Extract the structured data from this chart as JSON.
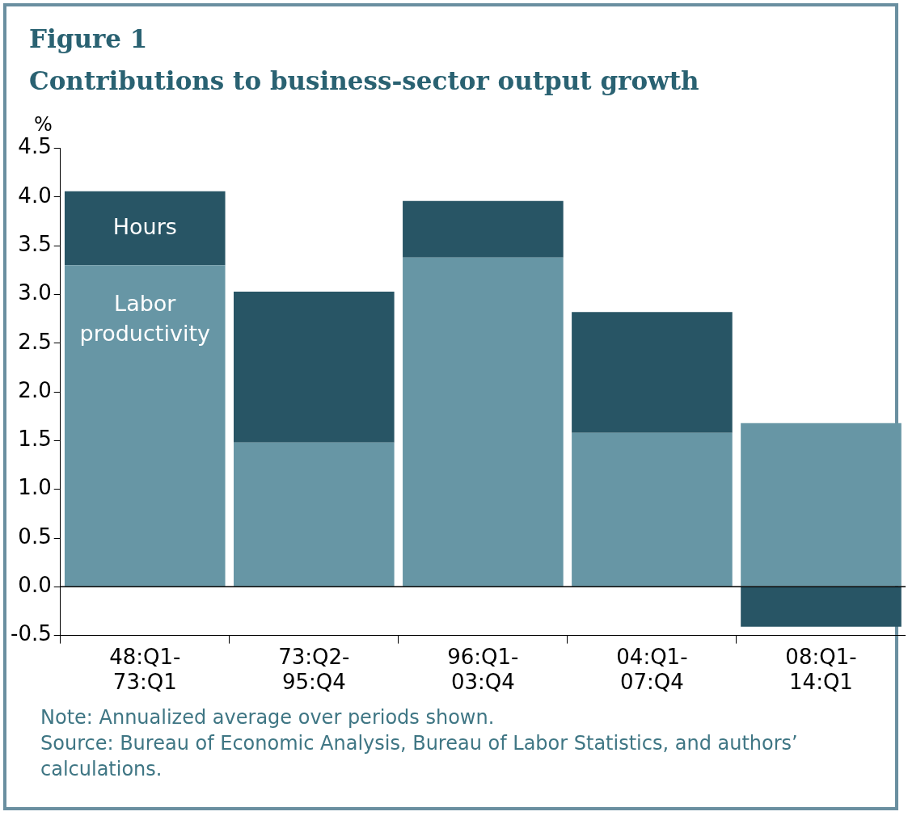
{
  "chart_data": {
    "type": "bar",
    "title": "Figure 1",
    "subtitle": "Contributions to business-sector output growth",
    "ylabel": "%",
    "categories": [
      "48:Q1-73:Q1",
      "73:Q2-95:Q4",
      "96:Q1-03:Q4",
      "04:Q1-07:Q4",
      "08:Q1-14:Q1"
    ],
    "stacked": true,
    "series": [
      {
        "name": "Labor productivity",
        "color": "#6796a5",
        "values": [
          3.3,
          1.48,
          3.38,
          1.58,
          1.68
        ]
      },
      {
        "name": "Hours",
        "color": "#285565",
        "values": [
          0.76,
          1.55,
          0.58,
          1.24,
          -0.41
        ]
      }
    ],
    "ylim": [
      -0.5,
      4.5
    ],
    "yticks": [
      {
        "value": -0.5,
        "label": "-0.5"
      },
      {
        "value": 0,
        "label": "0.0"
      },
      {
        "value": 0.5,
        "label": "0.5"
      },
      {
        "value": 1,
        "label": "1.0"
      },
      {
        "value": 1.5,
        "label": "1.5"
      },
      {
        "value": 2,
        "label": "2.0"
      },
      {
        "value": 2.5,
        "label": "2.5"
      },
      {
        "value": 3,
        "label": "3.0"
      },
      {
        "value": 3.5,
        "label": "3.5"
      },
      {
        "value": 4,
        "label": "4.0"
      },
      {
        "value": 4.5,
        "label": "4.5"
      }
    ],
    "ref_lines": [
      {
        "axis": "y",
        "value": 0,
        "color": "#000000"
      }
    ],
    "grid": false,
    "legend": false,
    "annotations": [
      "Note: Annualized average over periods shown.",
      "Source: Bureau of Economic Analysis, Bureau of Labor Statistics, and authors’ calculations."
    ]
  }
}
